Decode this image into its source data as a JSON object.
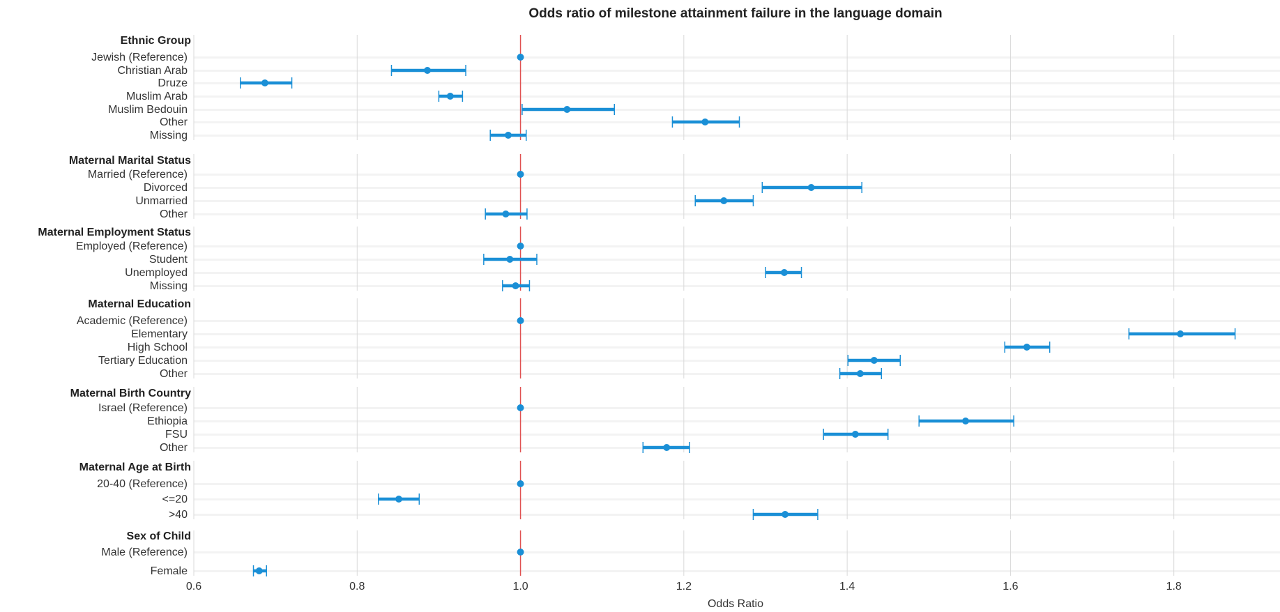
{
  "chart_data": {
    "type": "forest",
    "title": "Odds ratio of milestone attainment failure in the language domain",
    "xlabel": "Odds Ratio",
    "xlim": [
      0.6,
      1.93
    ],
    "xticks": [
      0.6,
      0.8,
      1.0,
      1.2,
      1.4,
      1.6,
      1.8
    ],
    "xtick_labels": [
      "0.6",
      "0.8",
      "1.0",
      "1.2",
      "1.4",
      "1.6",
      "1.8"
    ],
    "reference_line": 1.0,
    "grid": true,
    "colors": {
      "point": "#1a8fd6",
      "ci": "#1a8fd6",
      "reference": "#e05050",
      "grid": "#d9d9d9",
      "band": "#f3f3f3"
    },
    "groups": [
      {
        "name": "Ethnic Group",
        "rows": [
          {
            "label": "Jewish (Reference)",
            "or": 1.0,
            "lo": 1.0,
            "hi": 1.0
          },
          {
            "label": "Christian Arab",
            "or": 0.886,
            "lo": 0.842,
            "hi": 0.933
          },
          {
            "label": "Druze",
            "or": 0.687,
            "lo": 0.657,
            "hi": 0.72
          },
          {
            "label": "Muslim Arab",
            "or": 0.914,
            "lo": 0.9,
            "hi": 0.929
          },
          {
            "label": "Muslim Bedouin",
            "or": 1.057,
            "lo": 1.002,
            "hi": 1.115
          },
          {
            "label": "Other",
            "or": 1.226,
            "lo": 1.186,
            "hi": 1.268
          },
          {
            "label": "Missing",
            "or": 0.985,
            "lo": 0.963,
            "hi": 1.007
          }
        ]
      },
      {
        "name": "Maternal Marital Status",
        "rows": [
          {
            "label": "Married (Reference)",
            "or": 1.0,
            "lo": 1.0,
            "hi": 1.0
          },
          {
            "label": "Divorced",
            "or": 1.356,
            "lo": 1.296,
            "hi": 1.418
          },
          {
            "label": "Unmarried",
            "or": 1.249,
            "lo": 1.214,
            "hi": 1.285
          },
          {
            "label": "Other",
            "or": 0.982,
            "lo": 0.957,
            "hi": 1.008
          }
        ]
      },
      {
        "name": "Maternal Employment Status",
        "rows": [
          {
            "label": "Employed (Reference)",
            "or": 1.0,
            "lo": 1.0,
            "hi": 1.0
          },
          {
            "label": "Student",
            "or": 0.987,
            "lo": 0.955,
            "hi": 1.02
          },
          {
            "label": "Unemployed",
            "or": 1.323,
            "lo": 1.3,
            "hi": 1.344
          },
          {
            "label": "Missing",
            "or": 0.994,
            "lo": 0.978,
            "hi": 1.011
          }
        ]
      },
      {
        "name": "Maternal Education",
        "rows": [
          {
            "label": "Academic (Reference)",
            "or": 1.0,
            "lo": 1.0,
            "hi": 1.0
          },
          {
            "label": "Elementary",
            "or": 1.808,
            "lo": 1.745,
            "hi": 1.875
          },
          {
            "label": "High School",
            "or": 1.62,
            "lo": 1.593,
            "hi": 1.648
          },
          {
            "label": "Tertiary Education",
            "or": 1.433,
            "lo": 1.401,
            "hi": 1.465
          },
          {
            "label": "Other",
            "or": 1.416,
            "lo": 1.391,
            "hi": 1.442
          }
        ]
      },
      {
        "name": "Maternal Birth Country",
        "rows": [
          {
            "label": "Israel (Reference)",
            "or": 1.0,
            "lo": 1.0,
            "hi": 1.0
          },
          {
            "label": "Ethiopia",
            "or": 1.545,
            "lo": 1.488,
            "hi": 1.604
          },
          {
            "label": "FSU",
            "or": 1.41,
            "lo": 1.371,
            "hi": 1.45
          },
          {
            "label": "Other",
            "or": 1.179,
            "lo": 1.15,
            "hi": 1.207
          }
        ]
      },
      {
        "name": "Maternal Age at Birth",
        "rows": [
          {
            "label": "20-40 (Reference)",
            "or": 1.0,
            "lo": 1.0,
            "hi": 1.0
          },
          {
            "label": "<=20",
            "or": 0.851,
            "lo": 0.826,
            "hi": 0.876
          },
          {
            "label": ">40",
            "or": 1.324,
            "lo": 1.285,
            "hi": 1.364
          }
        ]
      },
      {
        "name": "Sex of Child",
        "rows": [
          {
            "label": "Male (Reference)",
            "or": 1.0,
            "lo": 1.0,
            "hi": 1.0
          },
          {
            "label": "Female",
            "or": 0.68,
            "lo": 0.673,
            "hi": 0.689
          }
        ]
      }
    ]
  }
}
